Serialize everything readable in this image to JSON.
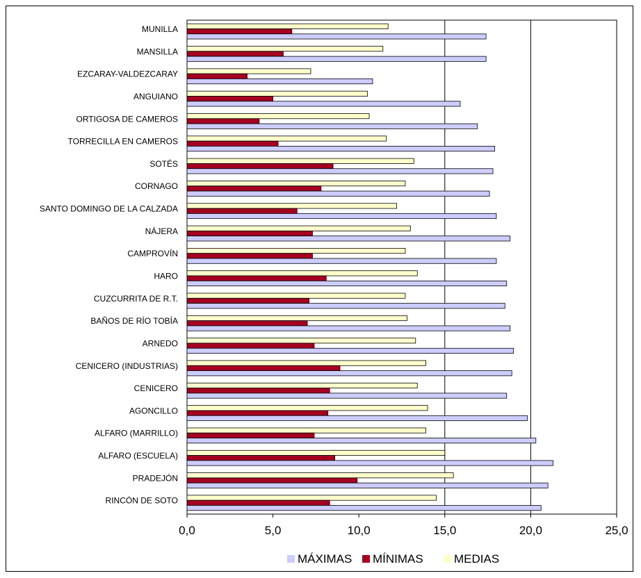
{
  "chart_data": {
    "type": "bar",
    "orientation": "horizontal",
    "categories": [
      "MUNILLA",
      "MANSILLA",
      "EZCARAY-VALDEZCARAY",
      "ANGUIANO",
      "ORTIGOSA DE CAMEROS",
      "TORRECILLA EN CAMEROS",
      "SOTÉS",
      "CORNAGO",
      "SANTO DOMINGO DE LA CALZADA",
      "NÁJERA",
      "CAMPROVÍN",
      "HARO",
      "CUZCURRITA DE R.T.",
      "BAÑOS DE RÍO TOBÍA",
      "ARNEDO",
      "CENICERO (INDUSTRIAS)",
      "CENICERO",
      "AGONCILLO",
      "ALFARO (MARRILLO)",
      "ALFARO (ESCUELA)",
      "PRADEJÓN",
      "RINCÓN DE SOTO"
    ],
    "series": [
      {
        "name": "MEDIAS",
        "color": "#ffffcc",
        "values": [
          11.7,
          11.4,
          7.2,
          10.5,
          10.6,
          11.6,
          13.2,
          12.7,
          12.2,
          13.0,
          12.7,
          13.4,
          12.7,
          12.8,
          13.3,
          13.9,
          13.4,
          14.0,
          13.9,
          15.0,
          15.5,
          14.5
        ]
      },
      {
        "name": "MÍNIMAS",
        "color": "#a50021",
        "values": [
          6.1,
          5.6,
          3.5,
          5.0,
          4.2,
          5.3,
          8.5,
          7.8,
          6.4,
          7.3,
          7.3,
          8.1,
          7.1,
          7.0,
          7.4,
          8.9,
          8.3,
          8.2,
          7.4,
          8.6,
          9.9,
          8.3
        ]
      },
      {
        "name": "MÁXIMAS",
        "color": "#ccccff",
        "values": [
          17.4,
          17.4,
          10.8,
          15.9,
          16.9,
          17.9,
          17.8,
          17.6,
          18.0,
          18.8,
          18.0,
          18.6,
          18.5,
          18.8,
          19.0,
          18.9,
          18.6,
          19.8,
          20.3,
          21.3,
          21.0,
          20.6
        ]
      }
    ],
    "xlim": [
      0,
      25
    ],
    "xticks": [
      "0,0",
      "5,0",
      "10,0",
      "15,0",
      "20,0",
      "25,0"
    ],
    "tick_values": [
      0,
      5,
      10,
      15,
      20,
      25
    ],
    "vertical_gridlines": [
      15,
      20
    ],
    "legend_position": "bottom",
    "legend": [
      {
        "label": "MÁXIMAS",
        "color": "#ccccff"
      },
      {
        "label": "MÍNIMAS",
        "color": "#a50021"
      },
      {
        "label": "MEDIAS",
        "color": "#ffffcc"
      }
    ],
    "title": "",
    "xlabel": "",
    "ylabel": ""
  }
}
